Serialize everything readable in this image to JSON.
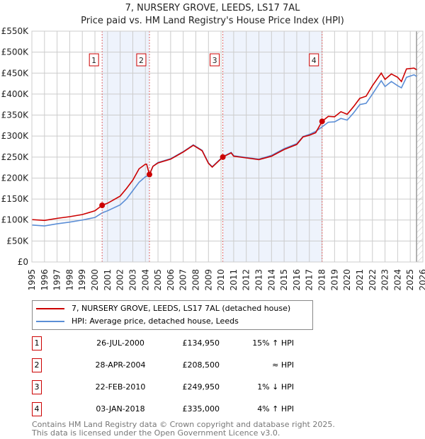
{
  "chart_data": {
    "type": "line",
    "title": "7, NURSERY GROVE, LEEDS, LS17 7AL",
    "subtitle": "Price paid vs. HM Land Registry's House Price Index (HPI)",
    "xlim": [
      1995,
      2026
    ],
    "ylim": [
      0,
      550000
    ],
    "yticks": [
      0,
      50000,
      100000,
      150000,
      200000,
      250000,
      300000,
      350000,
      400000,
      450000,
      500000,
      550000
    ],
    "ytick_labels": [
      "£0",
      "£50K",
      "£100K",
      "£150K",
      "£200K",
      "£250K",
      "£300K",
      "£350K",
      "£400K",
      "£450K",
      "£500K",
      "£550K"
    ],
    "xticks": [
      "1995",
      "1996",
      "1997",
      "1998",
      "1999",
      "2000",
      "2001",
      "2002",
      "2003",
      "2004",
      "2005",
      "2006",
      "2007",
      "2008",
      "2009",
      "2010",
      "2011",
      "2012",
      "2013",
      "2014",
      "2015",
      "2016",
      "2017",
      "2018",
      "2019",
      "2020",
      "2021",
      "2022",
      "2023",
      "2024",
      "2025",
      "2026"
    ],
    "grid": true,
    "series": [
      {
        "name": "7, NURSERY GROVE, LEEDS, LS17 7AL (detached house)",
        "color": "#cc0000",
        "x": [
          1995,
          1996,
          1997,
          1998,
          1999,
          2000,
          2000.57,
          2001,
          2002,
          2002.5,
          2003,
          2003.5,
          2004,
          2004.1,
          2004.32,
          2004.6,
          2005,
          2006,
          2007,
          2007.8,
          2008.5,
          2009,
          2009.3,
          2010.14,
          2010.8,
          2011,
          2012,
          2013,
          2014,
          2015,
          2016,
          2016.5,
          2017,
          2017.5,
          2018.01,
          2018.5,
          2019,
          2019.5,
          2020,
          2020.5,
          2021,
          2021.5,
          2022,
          2022.7,
          2023,
          2023.5,
          2024,
          2024.3,
          2024.7,
          2025.3,
          2025.5
        ],
        "y": [
          101000,
          99000,
          104000,
          108000,
          113000,
          122000,
          135000,
          140000,
          157000,
          175000,
          195000,
          222000,
          233000,
          233000,
          208500,
          228000,
          236000,
          245000,
          262000,
          278000,
          265000,
          235000,
          226000,
          250000,
          260000,
          252000,
          248000,
          244000,
          252000,
          268000,
          280000,
          298000,
          302000,
          308000,
          335000,
          347000,
          346000,
          358000,
          352000,
          370000,
          390000,
          395000,
          420000,
          450000,
          435000,
          448000,
          440000,
          430000,
          460000,
          462000,
          458000
        ]
      },
      {
        "name": "HPI: Average price, detached house, Leeds",
        "color": "#5b8ed6",
        "x": [
          1995,
          1996,
          1997,
          1998,
          1999,
          2000,
          2000.57,
          2001,
          2002,
          2002.5,
          2003,
          2003.5,
          2004,
          2004.32,
          2004.6,
          2005,
          2006,
          2007,
          2007.8,
          2008.5,
          2009,
          2009.3,
          2010.14,
          2010.8,
          2011,
          2012,
          2013,
          2014,
          2015,
          2016,
          2016.5,
          2017,
          2017.5,
          2018.01,
          2018.5,
          2019,
          2019.5,
          2020,
          2020.5,
          2021,
          2021.5,
          2022,
          2022.7,
          2023,
          2023.5,
          2024,
          2024.3,
          2024.7,
          2025.3,
          2025.5
        ],
        "y": [
          88000,
          86000,
          91000,
          95000,
          100000,
          106000,
          117000,
          122000,
          136000,
          150000,
          170000,
          190000,
          203000,
          207000,
          228000,
          237000,
          246000,
          263000,
          279000,
          266000,
          236000,
          227000,
          251000,
          261000,
          253000,
          249000,
          245000,
          254000,
          270000,
          282000,
          299000,
          304000,
          311000,
          322000,
          333000,
          334000,
          342000,
          338000,
          355000,
          375000,
          378000,
          400000,
          432000,
          418000,
          430000,
          420000,
          415000,
          440000,
          446000,
          442000
        ]
      }
    ],
    "sales": [
      {
        "n": "1",
        "x": 2000.57,
        "date": "26-JUL-2000",
        "price": "£134,950",
        "value": 134950,
        "hpi": "15% ↑ HPI"
      },
      {
        "n": "2",
        "x": 2004.32,
        "date": "28-APR-2004",
        "price": "£208,500",
        "value": 208500,
        "hpi": "≈ HPI"
      },
      {
        "n": "3",
        "x": 2010.14,
        "date": "22-FEB-2010",
        "price": "£249,950",
        "value": 249950,
        "hpi": "1% ↓ HPI"
      },
      {
        "n": "4",
        "x": 2018.01,
        "date": "03-JAN-2018",
        "price": "£335,000",
        "value": 335000,
        "hpi": "4% ↑ HPI"
      }
    ],
    "shaded": [
      [
        2000.57,
        2004.32
      ],
      [
        2010.14,
        2018.01
      ]
    ],
    "data_end": 2025.5,
    "legend_position": "below"
  },
  "footer": [
    "Contains HM Land Registry data © Crown copyright and database right 2025.",
    "This data is licensed under the Open Government Licence v3.0."
  ]
}
